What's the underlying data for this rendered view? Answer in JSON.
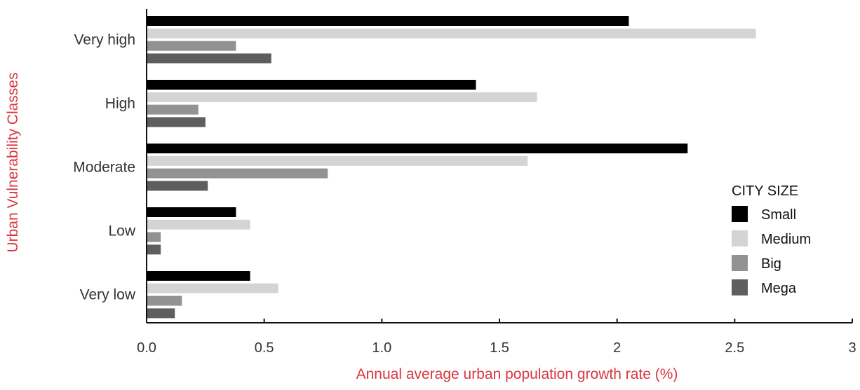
{
  "chart_data": {
    "type": "bar",
    "orientation": "horizontal",
    "title": "",
    "xlabel": "Annual average urban population growth rate (%)",
    "ylabel": "Urban Vulnerability Classes",
    "categories": [
      "Very high",
      "High",
      "Moderate",
      "Low",
      "Very low"
    ],
    "series": [
      {
        "name": "Small",
        "color": "#000000",
        "values": [
          2.05,
          1.4,
          2.3,
          0.38,
          0.44
        ]
      },
      {
        "name": "Medium",
        "color": "#d4d4d4",
        "values": [
          2.59,
          1.66,
          1.62,
          0.44,
          0.56
        ]
      },
      {
        "name": "Big",
        "color": "#929292",
        "values": [
          0.38,
          0.22,
          0.77,
          0.06,
          0.15
        ]
      },
      {
        "name": "Mega",
        "color": "#5e5e5e",
        "values": [
          0.53,
          0.25,
          0.26,
          0.06,
          0.12
        ]
      }
    ],
    "xlim": [
      0,
      3
    ],
    "xticks": [
      0,
      0.5,
      1,
      1.5,
      2,
      2.5,
      3
    ],
    "xtick_labels": [
      "0.0",
      "0.5",
      "1.0",
      "1.5",
      "2",
      "2.5",
      "3"
    ],
    "grid": false,
    "legend": {
      "title": "CITY SIZE",
      "placement": "right"
    },
    "axis_title_color": "#d9363e"
  }
}
